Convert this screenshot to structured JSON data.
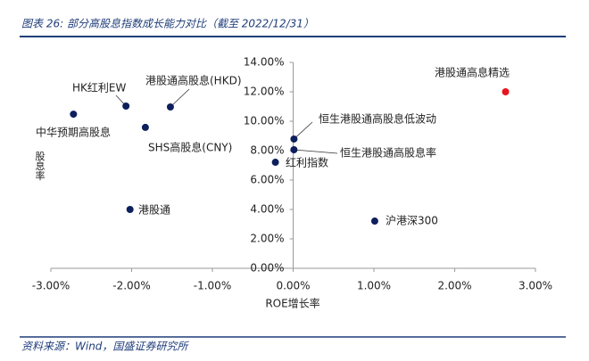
{
  "chart_data": {
    "type": "scatter",
    "title": "图表 26:  部分高股息指数成长能力对比（截至 2022/12/31）",
    "source": "资料来源：Wind，国盛证券研究所",
    "x_label": "ROE增长率",
    "y_label": "股息率",
    "point_labels": [
      "港股通高息精选",
      "HK红利EW",
      "港股通高股息(HKD)",
      "中华预期高股息",
      "SHS高股息(CNY)",
      "恒生港股通高股息低波动",
      "恒生港股通高股息率",
      "红利指数",
      "港股通",
      "沪港深300"
    ],
    "x": [
      2.63,
      -2.07,
      -1.52,
      -2.72,
      -1.83,
      0.01,
      0.01,
      -0.22,
      -2.02,
      1.01
    ],
    "values": [
      12.0,
      11.03,
      10.97,
      10.48,
      9.58,
      8.79,
      8.06,
      7.21,
      4.0,
      3.21
    ],
    "colors": [
      "#e8141e",
      "#0d1f5c",
      "#0d1f5c",
      "#0d1f5c",
      "#0d1f5c",
      "#0d1f5c",
      "#0d1f5c",
      "#0d1f5c",
      "#0d1f5c",
      "#0d1f5c"
    ],
    "xlim": [
      -3,
      3
    ],
    "ylim": [
      0,
      14
    ],
    "xticks": [
      {
        "value": -3,
        "label": "-3.00%"
      },
      {
        "value": -2,
        "label": "-2.00%"
      },
      {
        "value": -1,
        "label": "-1.00%"
      },
      {
        "value": 0,
        "label": "0.00%"
      },
      {
        "value": 1,
        "label": "1.00%"
      },
      {
        "value": 2,
        "label": "2.00%"
      },
      {
        "value": 3,
        "label": "3.00%"
      }
    ],
    "yticks": [
      {
        "value": 0,
        "label": "0.00%"
      },
      {
        "value": 2,
        "label": "2.00%"
      },
      {
        "value": 4,
        "label": "4.00%"
      },
      {
        "value": 6,
        "label": "6.00%"
      },
      {
        "value": 8,
        "label": "8.00%"
      },
      {
        "value": 10,
        "label": "10.00%"
      },
      {
        "value": 12,
        "label": "12.00%"
      },
      {
        "value": 14,
        "label": "14.00%"
      }
    ]
  }
}
